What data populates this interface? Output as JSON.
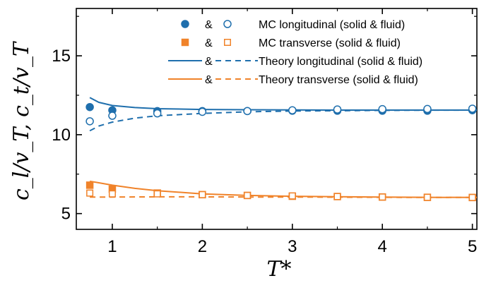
{
  "chart_data": {
    "type": "scatter",
    "xlabel": "T*",
    "ylabel": "c_l/v_T, c_t/v_T",
    "xlim": [
      0.6,
      5.05
    ],
    "ylim": [
      4.0,
      18.0
    ],
    "xticks": [
      1,
      2,
      3,
      4,
      5
    ],
    "xtick_labels": [
      "1",
      "2",
      "3",
      "4",
      "5"
    ],
    "yticks": [
      5,
      10,
      15
    ],
    "ytick_labels": [
      "5",
      "10",
      "15"
    ],
    "grid": false,
    "legend_position": "top-right",
    "colors": {
      "longitudinal": "#1f6fad",
      "transverse": "#f0832a"
    },
    "legend": [
      {
        "joiner": "&",
        "label": "MC longitudinal (solid & fluid)"
      },
      {
        "joiner": "&",
        "label": "MC transverse (solid & fluid)"
      },
      {
        "joiner": "&",
        "label": "Theory longitudinal (solid & fluid)"
      },
      {
        "joiner": "&",
        "label": "Theory transverse (solid & fluid)"
      }
    ],
    "series": [
      {
        "name": "MC longitudinal (solid)",
        "kind": "points",
        "marker": "circle",
        "filled": true,
        "color": "#1f6fad",
        "x": [
          0.75,
          1.0,
          1.5,
          2.0,
          2.5,
          3.0,
          3.5,
          4.0,
          4.5,
          5.0
        ],
        "y": [
          11.75,
          11.55,
          11.5,
          11.5,
          11.5,
          11.52,
          11.52,
          11.52,
          11.52,
          11.55
        ]
      },
      {
        "name": "MC longitudinal (fluid)",
        "kind": "points",
        "marker": "circle",
        "filled": false,
        "color": "#1f6fad",
        "x": [
          0.75,
          1.0,
          1.5,
          2.0,
          2.5,
          3.0,
          3.5,
          4.0,
          4.5,
          5.0
        ],
        "y": [
          10.85,
          11.2,
          11.35,
          11.45,
          11.5,
          11.55,
          11.6,
          11.62,
          11.63,
          11.65
        ]
      },
      {
        "name": "MC transverse (solid)",
        "kind": "points",
        "marker": "square",
        "filled": true,
        "color": "#f0832a",
        "x": [
          0.75,
          1.0,
          1.5,
          2.0,
          2.5,
          3.0,
          3.5,
          4.0,
          4.5,
          5.0
        ],
        "y": [
          6.8,
          6.55,
          6.3,
          6.2,
          6.15,
          6.1,
          6.08,
          6.05,
          6.03,
          6.02
        ]
      },
      {
        "name": "MC transverse (fluid)",
        "kind": "points",
        "marker": "square",
        "filled": false,
        "color": "#f0832a",
        "x": [
          0.75,
          1.0,
          1.5,
          2.0,
          2.5,
          3.0,
          3.5,
          4.0,
          4.5,
          5.0
        ],
        "y": [
          6.3,
          6.25,
          6.25,
          6.2,
          6.15,
          6.12,
          6.08,
          6.05,
          6.03,
          6.02
        ]
      },
      {
        "name": "Theory longitudinal (solid)",
        "kind": "line",
        "dashed": false,
        "color": "#1f6fad",
        "x": [
          0.75,
          0.85,
          1.0,
          1.25,
          1.5,
          2.0,
          2.5,
          3.0,
          3.5,
          4.0,
          4.5,
          5.05
        ],
        "y": [
          12.35,
          12.05,
          11.85,
          11.72,
          11.65,
          11.6,
          11.58,
          11.57,
          11.56,
          11.56,
          11.56,
          11.56
        ]
      },
      {
        "name": "Theory longitudinal (fluid)",
        "kind": "line",
        "dashed": true,
        "color": "#1f6fad",
        "x": [
          0.75,
          0.85,
          1.0,
          1.25,
          1.5,
          2.0,
          2.5,
          3.0,
          3.5,
          4.0,
          4.5,
          5.05
        ],
        "y": [
          10.25,
          10.55,
          10.8,
          11.05,
          11.2,
          11.35,
          11.45,
          11.5,
          11.52,
          11.54,
          11.55,
          11.56
        ]
      },
      {
        "name": "Theory transverse (solid)",
        "kind": "line",
        "dashed": false,
        "color": "#f0832a",
        "x": [
          0.75,
          0.85,
          1.0,
          1.25,
          1.5,
          2.0,
          2.5,
          3.0,
          3.5,
          4.0,
          4.5,
          5.05
        ],
        "y": [
          7.05,
          6.95,
          6.8,
          6.6,
          6.45,
          6.25,
          6.15,
          6.1,
          6.07,
          6.05,
          6.03,
          6.02
        ]
      },
      {
        "name": "Theory transverse (fluid)",
        "kind": "line",
        "dashed": true,
        "color": "#f0832a",
        "x": [
          0.75,
          1.0,
          1.5,
          2.0,
          2.5,
          3.0,
          3.5,
          4.0,
          4.5,
          5.05
        ],
        "y": [
          6.05,
          6.05,
          6.06,
          6.06,
          6.05,
          6.05,
          6.04,
          6.03,
          6.02,
          6.02
        ]
      }
    ]
  }
}
